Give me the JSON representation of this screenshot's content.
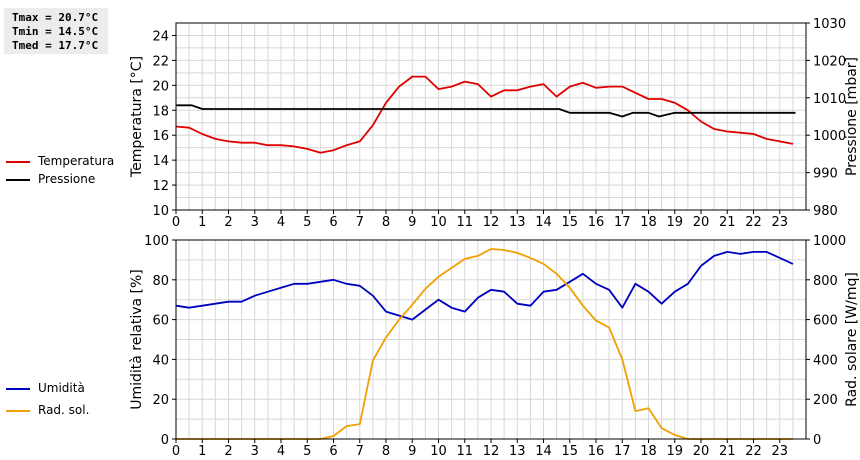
{
  "stats": {
    "tmax": "Tmax = 20.7°C",
    "tmin": "Tmin = 14.5°C",
    "tmed": "Tmed = 17.7°C"
  },
  "legend_top": [
    {
      "label": "Temperatura",
      "color": "#e00000"
    },
    {
      "label": "Pressione",
      "color": "#000000"
    }
  ],
  "legend_bottom": [
    {
      "label": "Umidità",
      "color": "#0000c0"
    },
    {
      "label": "Rad. sol.",
      "color": "#f0a000"
    }
  ],
  "colors": {
    "temperature": "#e00000",
    "pressure": "#000000",
    "humidity": "#0000c0",
    "radiation": "#f0a000",
    "grid": "#d8d8d8"
  },
  "chart_data": [
    {
      "type": "line",
      "xlim": [
        0,
        24
      ],
      "x_ticks": [
        "0",
        "1",
        "2",
        "3",
        "4",
        "5",
        "6",
        "7",
        "8",
        "9",
        "10",
        "11",
        "12",
        "13",
        "14",
        "15",
        "16",
        "17",
        "18",
        "19",
        "20",
        "21",
        "22",
        "23"
      ],
      "ylabel": "Temperatura [°C]",
      "ylim": [
        10,
        25
      ],
      "y_ticks": [
        "10",
        "12",
        "14",
        "16",
        "18",
        "20",
        "22",
        "24"
      ],
      "y2label": "Pressione [mbar]",
      "y2lim": [
        980,
        1030
      ],
      "y2_ticks": [
        "980",
        "990",
        "1000",
        "1010",
        "1020",
        "1030"
      ],
      "grid": true,
      "series": [
        {
          "name": "Temperatura",
          "axis": "left",
          "x": [
            0,
            0.5,
            1,
            1.5,
            2,
            2.5,
            3,
            3.5,
            4,
            4.5,
            5,
            5.5,
            6,
            6.5,
            7,
            7.5,
            8,
            8.5,
            9,
            9.5,
            10,
            10.5,
            11,
            11.5,
            12,
            12.5,
            13,
            13.5,
            14,
            14.5,
            15,
            15.5,
            16,
            16.5,
            17,
            17.5,
            18,
            18.5,
            19,
            19.5,
            20,
            20.5,
            21,
            21.5,
            22,
            22.5,
            23,
            23.5
          ],
          "y": [
            16.7,
            16.6,
            16.1,
            15.7,
            15.5,
            15.4,
            15.4,
            15.2,
            15.2,
            15.1,
            14.9,
            14.6,
            14.8,
            15.2,
            15.5,
            16.8,
            18.6,
            19.9,
            20.7,
            20.7,
            19.7,
            19.9,
            20.3,
            20.1,
            19.1,
            19.6,
            19.6,
            19.9,
            20.1,
            19.1,
            19.9,
            20.2,
            19.8,
            19.9,
            19.9,
            19.4,
            18.9,
            18.9,
            18.6,
            18.0,
            17.1,
            16.5,
            16.3,
            16.2,
            16.1,
            15.7,
            15.5,
            15.3
          ]
        },
        {
          "name": "Pressione",
          "axis": "right",
          "x": [
            0,
            0.6,
            1,
            14.6,
            15,
            16.5,
            17,
            17.4,
            18,
            18.4,
            19,
            19.4,
            20,
            23.6
          ],
          "y": [
            1008.0,
            1008.0,
            1007.0,
            1007.0,
            1006.0,
            1006.0,
            1005.0,
            1006.0,
            1006.0,
            1005.0,
            1006.0,
            1006.0,
            1006.0,
            1006.0
          ]
        }
      ]
    },
    {
      "type": "line",
      "xlim": [
        0,
        24
      ],
      "x_ticks": [
        "0",
        "1",
        "2",
        "3",
        "4",
        "5",
        "6",
        "7",
        "8",
        "9",
        "10",
        "11",
        "12",
        "13",
        "14",
        "15",
        "16",
        "17",
        "18",
        "19",
        "20",
        "21",
        "22",
        "23"
      ],
      "ylabel": "Umidità relativa [%]",
      "ylim": [
        0,
        100
      ],
      "y_ticks": [
        "0",
        "20",
        "40",
        "60",
        "80",
        "100"
      ],
      "y2label": "Rad. solare [W/mq]",
      "y2lim": [
        0,
        1000
      ],
      "y2_ticks": [
        "0",
        "200",
        "400",
        "600",
        "800",
        "1000"
      ],
      "grid": true,
      "series": [
        {
          "name": "Umidità",
          "axis": "left",
          "x": [
            0,
            0.5,
            1,
            1.5,
            2,
            2.5,
            3,
            3.5,
            4,
            4.5,
            5,
            5.5,
            6,
            6.5,
            7,
            7.5,
            8,
            8.5,
            9,
            9.5,
            10,
            10.5,
            11,
            11.5,
            12,
            12.5,
            13,
            13.5,
            14,
            14.5,
            15,
            15.5,
            16,
            16.5,
            17,
            17.5,
            18,
            18.5,
            19,
            19.5,
            20,
            20.5,
            21,
            21.5,
            22,
            22.5,
            23,
            23.5
          ],
          "y": [
            67,
            66,
            67,
            68,
            69,
            69,
            72,
            74,
            76,
            78,
            78,
            79,
            80,
            78,
            77,
            72,
            64,
            62,
            60,
            65,
            70,
            66,
            64,
            71,
            75,
            74,
            68,
            67,
            74,
            75,
            79,
            83,
            78,
            75,
            66,
            78,
            74,
            68,
            74,
            78,
            87,
            92,
            94,
            93,
            94,
            94,
            91,
            88
          ]
        },
        {
          "name": "Rad. sol.",
          "axis": "right",
          "x": [
            0,
            1,
            2,
            3,
            4,
            5,
            5.5,
            6,
            6.5,
            7,
            7.5,
            8,
            8.5,
            9,
            9.5,
            10,
            10.5,
            11,
            11.5,
            12,
            12.5,
            13,
            13.5,
            14,
            14.5,
            15,
            15.5,
            16,
            16.5,
            17,
            17.5,
            18,
            18.5,
            19,
            19.5,
            20,
            21,
            22,
            23,
            23.5
          ],
          "y": [
            0,
            0,
            0,
            0,
            0,
            0,
            0,
            15,
            65,
            75,
            395,
            510,
            600,
            675,
            755,
            815,
            860,
            905,
            920,
            955,
            950,
            935,
            910,
            880,
            830,
            760,
            670,
            595,
            560,
            400,
            140,
            155,
            55,
            20,
            0,
            0,
            0,
            0,
            0,
            0
          ]
        }
      ]
    }
  ]
}
